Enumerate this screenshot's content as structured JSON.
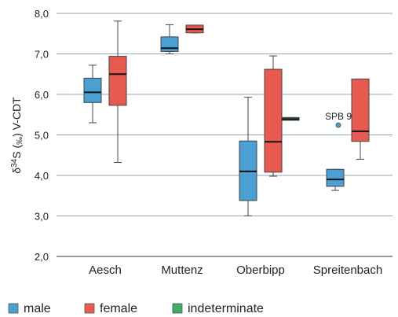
{
  "chart_data": {
    "type": "box",
    "ylabel": {
      "prefix": "δ",
      "sup": "34",
      "main": "S (",
      "sub": "‰",
      "suffix": ") V-CDT"
    },
    "ylim": [
      2.0,
      8.0
    ],
    "yticks": [
      "2,0",
      "3,0",
      "4,0",
      "5,0",
      "6,0",
      "7,0",
      "8,0"
    ],
    "grid": true,
    "categories": [
      "Aesch",
      "Muttenz",
      "Oberbipp",
      "Spreitenbach"
    ],
    "series": [
      {
        "name": "male",
        "color": "#4aa0d2",
        "boxes": [
          {
            "category": "Aesch",
            "min": 5.3,
            "q1": 5.8,
            "median": 6.05,
            "q3": 6.4,
            "max": 6.72
          },
          {
            "category": "Muttenz",
            "min": 7.0,
            "q1": 7.06,
            "median": 7.14,
            "q3": 7.42,
            "max": 7.72
          },
          {
            "category": "Oberbipp",
            "min": 3.0,
            "q1": 3.38,
            "median": 4.1,
            "q3": 4.85,
            "max": 5.93
          },
          {
            "category": "Spreitenbach",
            "min": 3.63,
            "q1": 3.73,
            "median": 3.9,
            "q3": 4.15,
            "max": 4.15
          }
        ]
      },
      {
        "name": "female",
        "color": "#e85a4f",
        "boxes": [
          {
            "category": "Aesch",
            "min": 4.32,
            "q1": 5.73,
            "median": 6.5,
            "q3": 6.94,
            "max": 7.81
          },
          {
            "category": "Muttenz",
            "min": 7.52,
            "q1": 7.52,
            "median": 7.61,
            "q3": 7.71,
            "max": 7.71
          },
          {
            "category": "Oberbipp",
            "min": 3.98,
            "q1": 4.08,
            "median": 4.83,
            "q3": 6.62,
            "max": 6.95
          },
          {
            "category": "Spreitenbach",
            "min": 4.4,
            "q1": 4.84,
            "median": 5.09,
            "q3": 6.38,
            "max": 6.38
          }
        ]
      },
      {
        "name": "indeterminate",
        "color": "#3cae62",
        "boxes": [
          {
            "category": "Oberbipp",
            "min": 5.36,
            "q1": 5.36,
            "median": 5.39,
            "q3": 5.43,
            "max": 5.43
          }
        ]
      }
    ],
    "outliers": [
      {
        "category": "Spreitenbach",
        "series": "male",
        "y": 5.24,
        "label": "SPB 9"
      }
    ],
    "legend": {
      "placement": "bottom"
    }
  }
}
